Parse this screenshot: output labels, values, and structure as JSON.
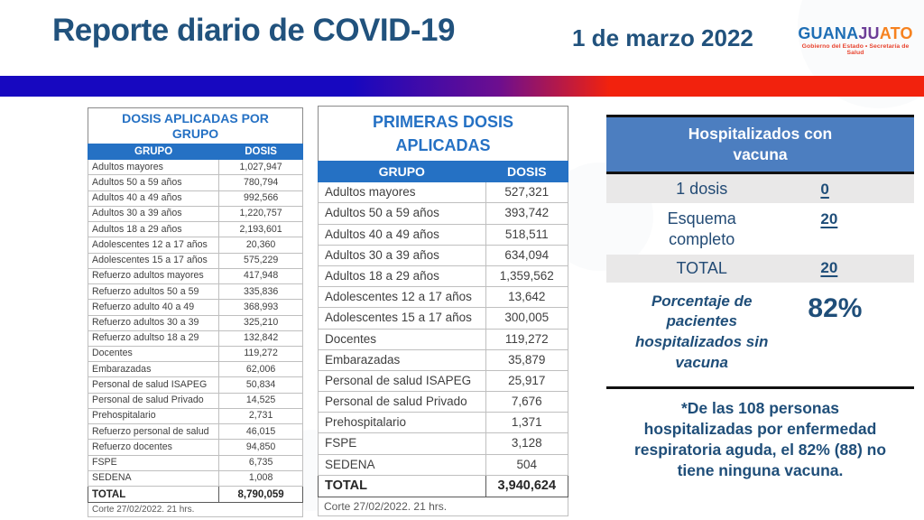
{
  "header": {
    "title": "Reporte diario de COVID-19",
    "date": "1 de marzo 2022",
    "logo": {
      "part1": "GUANA",
      "part2": "JU",
      "part3": "ATO",
      "subtitle": "Gobierno del Estado • Secretaría de Salud"
    }
  },
  "left_table": {
    "title": "DOSIS APLICADAS POR GRUPO",
    "columns": [
      "GRUPO",
      "DOSIS"
    ],
    "rows": [
      [
        "Adultos mayores",
        "1,027,947"
      ],
      [
        "Adultos 50 a 59 años",
        "780,794"
      ],
      [
        "Adultos 40 a 49 años",
        "992,566"
      ],
      [
        "Adultos 30 a 39 años",
        "1,220,757"
      ],
      [
        "Adultos 18 a 29 años",
        "2,193,601"
      ],
      [
        "Adolescentes 12 a 17 años",
        "20,360"
      ],
      [
        "Adolescentes 15 a 17 años",
        "575,229"
      ],
      [
        "Refuerzo adultos mayores",
        "417,948"
      ],
      [
        "Refuerzo adultos 50 a 59",
        "335,836"
      ],
      [
        "Refuerzo adulto 40 a 49",
        "368,993"
      ],
      [
        "Refuerzo adultos 30 a 39",
        "325,210"
      ],
      [
        "Refuerzo adultso 18 a 29",
        "132,842"
      ],
      [
        "Docentes",
        "119,272"
      ],
      [
        "Embarazadas",
        "62,006"
      ],
      [
        "Personal de salud ISAPEG",
        "50,834"
      ],
      [
        "Personal de salud Privado",
        "14,525"
      ],
      [
        "Prehospitalario",
        "2,731"
      ],
      [
        "Refuerzo personal de salud",
        "46,015"
      ],
      [
        "Refuerzo docentes",
        "94,850"
      ],
      [
        "FSPE",
        "6,735"
      ],
      [
        "SEDENA",
        "1,008"
      ]
    ],
    "total_label": "TOTAL",
    "total_value": "8,790,059",
    "footnote": "Corte 27/02/2022.  21 hrs."
  },
  "middle_table": {
    "title": "PRIMERAS DOSIS APLICADAS",
    "columns": [
      "GRUPO",
      "DOSIS"
    ],
    "rows": [
      [
        "Adultos mayores",
        "527,321"
      ],
      [
        "Adultos 50 a 59 años",
        "393,742"
      ],
      [
        "Adultos 40 a 49 años",
        "518,511"
      ],
      [
        "Adultos 30 a 39 años",
        "634,094"
      ],
      [
        "Adultos 18 a 29 años",
        "1,359,562"
      ],
      [
        "Adolescentes 12 a 17 años",
        "13,642"
      ],
      [
        "Adolescentes 15 a 17 años",
        "300,005"
      ],
      [
        "Docentes",
        "119,272"
      ],
      [
        "Embarazadas",
        "35,879"
      ],
      [
        "Personal de salud ISAPEG",
        "25,917"
      ],
      [
        "Personal de salud Privado",
        "7,676"
      ],
      [
        "Prehospitalario",
        "1,371"
      ],
      [
        "FSPE",
        "3,128"
      ],
      [
        "SEDENA",
        "504"
      ]
    ],
    "total_label": "TOTAL",
    "total_value": "3,940,624",
    "footnote": "Corte 27/02/2022.  21 hrs."
  },
  "right_panel": {
    "title": "Hospitalizados con vacuna",
    "rows": [
      {
        "label": "1 dosis",
        "value": "0"
      },
      {
        "label": "Esquema completo",
        "value": "20"
      },
      {
        "label": "TOTAL",
        "value": "20"
      }
    ],
    "percent_label": "Porcentaje de pacientes hospitalizados sin vacuna",
    "percent_value": "82%",
    "note_lines": [
      "*De las 108 personas",
      "hospitalizadas por enfermedad",
      "respiratoria aguda, el 82% (88) no",
      "tiene ninguna vacuna."
    ]
  },
  "colors": {
    "title_navy": "#21527D",
    "table_header_blue": "#2571C4",
    "panel_header_blue": "#4C7EC0",
    "panel_row_gray": "#E9E8E8",
    "flag_blue": "#1708C0",
    "flag_red": "#F2220D",
    "logo_orange": "#F6821F"
  }
}
